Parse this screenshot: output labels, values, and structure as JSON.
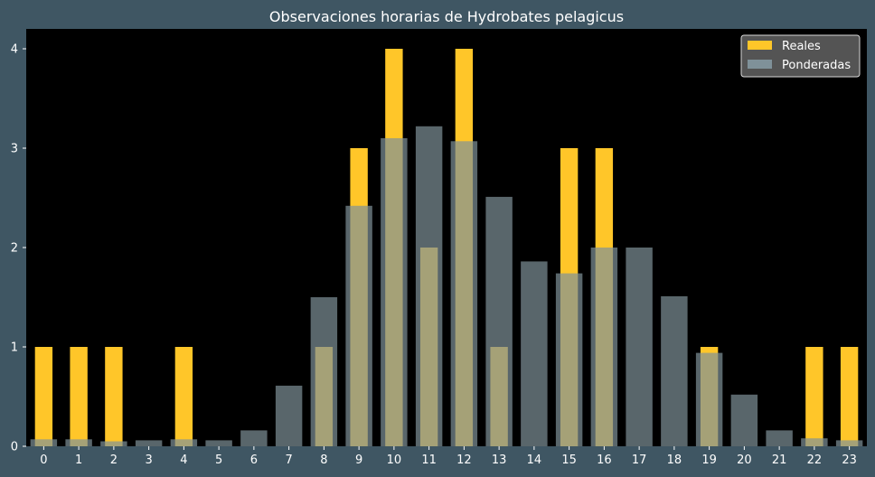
{
  "colors": {
    "figure_bg": "#3f5663",
    "plot_bg": "#000000",
    "text": "#ffffff",
    "reales": "#ffc629",
    "ponderadas": "#7f9199",
    "legend_bg": "#595959",
    "legend_border": "#d9d9d9"
  },
  "chart_data": {
    "type": "bar",
    "title": "Observaciones horarias de Hydrobates pelagicus",
    "xlabel": "",
    "ylabel": "",
    "categories": [
      "0",
      "1",
      "2",
      "3",
      "4",
      "5",
      "6",
      "7",
      "8",
      "9",
      "10",
      "11",
      "12",
      "13",
      "14",
      "15",
      "16",
      "17",
      "18",
      "19",
      "20",
      "21",
      "22",
      "23"
    ],
    "ylim": [
      0,
      4.2
    ],
    "yticks": [
      "0",
      "1",
      "2",
      "3",
      "4"
    ],
    "grid": false,
    "legend_position": "top-right",
    "series": [
      {
        "name": "Reales",
        "color": "#ffc629",
        "values": [
          1,
          1,
          1,
          0,
          1,
          0,
          0,
          0,
          1,
          3,
          4,
          2,
          4,
          1,
          0,
          3,
          3,
          0,
          0,
          1,
          0,
          0,
          1,
          1
        ]
      },
      {
        "name": "Ponderadas",
        "color": "#7f9199",
        "values": [
          0.07,
          0.07,
          0.05,
          0.06,
          0.07,
          0.06,
          0.16,
          0.61,
          1.5,
          2.42,
          3.1,
          3.22,
          3.07,
          2.51,
          1.86,
          1.74,
          2.0,
          2.0,
          1.51,
          0.94,
          0.52,
          0.16,
          0.08,
          0.06
        ]
      }
    ]
  }
}
